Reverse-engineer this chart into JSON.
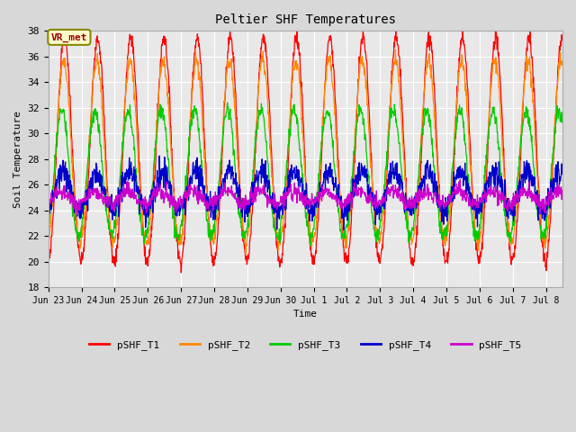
{
  "title": "Peltier SHF Temperatures",
  "xlabel": "Time",
  "ylabel": "Soil Temperature",
  "ylim": [
    18,
    38
  ],
  "yticks": [
    18,
    20,
    22,
    24,
    26,
    28,
    30,
    32,
    34,
    36,
    38
  ],
  "background_color": "#d8d8d8",
  "plot_bg_color": "#e8e8e8",
  "annotation_text": "VR_met",
  "annotation_bg": "#ffffcc",
  "annotation_border": "#888800",
  "annotation_text_color": "#990000",
  "colors": {
    "pSHF_T1": "#ff0000",
    "pSHF_T2": "#ff8800",
    "pSHF_T3": "#00cc00",
    "pSHF_T4": "#0000cc",
    "pSHF_T5": "#cc00cc"
  },
  "legend_labels": [
    "pSHF_T1",
    "pSHF_T2",
    "pSHF_T3",
    "pSHF_T4",
    "pSHF_T5"
  ],
  "xtick_positions": [
    0,
    1,
    2,
    3,
    4,
    5,
    6,
    7,
    8,
    9,
    10,
    11,
    12,
    13,
    14,
    15
  ],
  "xtick_labels": [
    "Jun 23",
    "Jun 24",
    "Jun 25",
    "Jun 26",
    "Jun 27",
    "Jun 28",
    "Jun 29",
    "Jun 30",
    "Jul 1",
    "Jul 2",
    "Jul 3",
    "Jul 4",
    "Jul 5",
    "Jul 6",
    "Jul 7",
    "Jul 8"
  ],
  "n_days": 15.5,
  "samples_per_day": 96
}
